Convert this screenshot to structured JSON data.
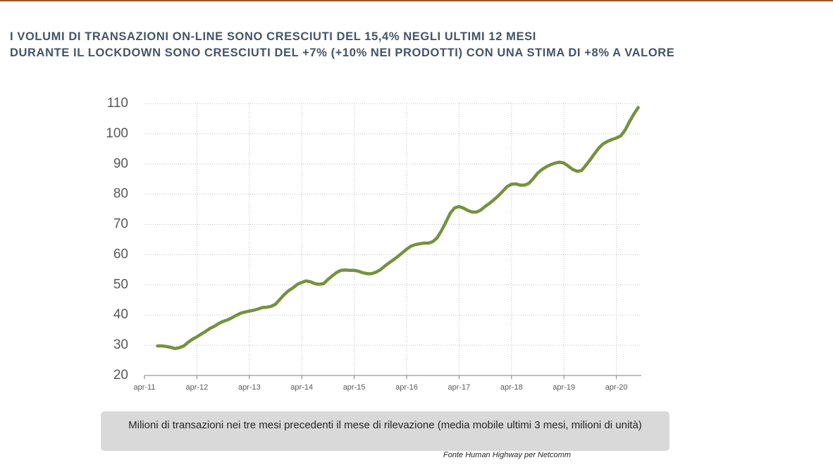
{
  "chart_data": {
    "type": "line",
    "title": [
      "I VOLUMI DI TRANSAZIONI ON-LINE SONO CRESCIUTI DEL 15,4% NEGLI ULTIMI 12 MESI",
      "DURANTE IL LOCKDOWN SONO CRESCIUTI DEL +7%  (+10% NEI  PRODOTTI) CON UNA STIMA DI +8% A VALORE"
    ],
    "categories": [
      "apr-11",
      null,
      null,
      null,
      null,
      null,
      null,
      null,
      null,
      null,
      null,
      null,
      "apr-12",
      null,
      null,
      null,
      null,
      null,
      null,
      null,
      null,
      null,
      null,
      null,
      "apr-13",
      null,
      null,
      null,
      null,
      null,
      null,
      null,
      null,
      null,
      null,
      null,
      "apr-14",
      null,
      null,
      null,
      null,
      null,
      null,
      null,
      null,
      null,
      null,
      null,
      "apr-15",
      null,
      null,
      null,
      null,
      null,
      null,
      null,
      null,
      null,
      null,
      null,
      "apr-16",
      null,
      null,
      null,
      null,
      null,
      null,
      null,
      null,
      null,
      null,
      null,
      "apr-17",
      null,
      null,
      null,
      null,
      null,
      null,
      null,
      null,
      null,
      null,
      null,
      "apr-18",
      null,
      null,
      null,
      null,
      null,
      null,
      null,
      null,
      null,
      null,
      null,
      "apr-19",
      null,
      null,
      null,
      null,
      null,
      null,
      null,
      null,
      null,
      null,
      null,
      "apr-20",
      null,
      null,
      null,
      null,
      null
    ],
    "values": [
      null,
      null,
      null,
      29.8,
      29.8,
      29.6,
      29.3,
      28.9,
      29.2,
      29.8,
      31.0,
      32.0,
      32.8,
      33.7,
      34.6,
      35.6,
      36.3,
      37.2,
      37.9,
      38.4,
      39.1,
      39.9,
      40.6,
      41.0,
      41.3,
      41.6,
      42.0,
      42.5,
      42.6,
      42.9,
      43.6,
      45.2,
      46.8,
      48.1,
      49.0,
      50.2,
      50.8,
      51.3,
      51.0,
      50.4,
      50.2,
      50.4,
      51.8,
      53.0,
      54.1,
      54.8,
      54.9,
      54.8,
      54.8,
      54.5,
      54.0,
      53.7,
      53.7,
      54.2,
      55.0,
      56.2,
      57.3,
      58.3,
      59.4,
      60.6,
      61.8,
      62.8,
      63.3,
      63.6,
      63.8,
      63.8,
      64.3,
      65.6,
      68.0,
      70.8,
      73.8,
      75.5,
      75.9,
      75.4,
      74.6,
      74.1,
      74.1,
      74.8,
      76.0,
      77.0,
      78.2,
      79.5,
      81.0,
      82.5,
      83.3,
      83.4,
      83.0,
      83.0,
      83.6,
      85.2,
      87.0,
      88.2,
      89.1,
      89.8,
      90.3,
      90.6,
      90.3,
      89.3,
      88.2,
      87.6,
      87.8,
      89.5,
      91.4,
      93.4,
      95.3,
      96.7,
      97.5,
      98.1,
      98.6,
      99.3,
      101.2,
      104.0,
      106.5,
      108.7
    ],
    "color": "#76913f",
    "ylim": [
      20,
      110
    ],
    "yticks": [
      20,
      30,
      40,
      50,
      60,
      70,
      80,
      90,
      100,
      110
    ],
    "grid": true,
    "caption": "Milioni di transazioni nei tre mesi precedenti il mese di rilevazione (media mobile ultimi 3 mesi, milioni di unità)",
    "source": "Fonte Human Highway per Netcomm"
  }
}
